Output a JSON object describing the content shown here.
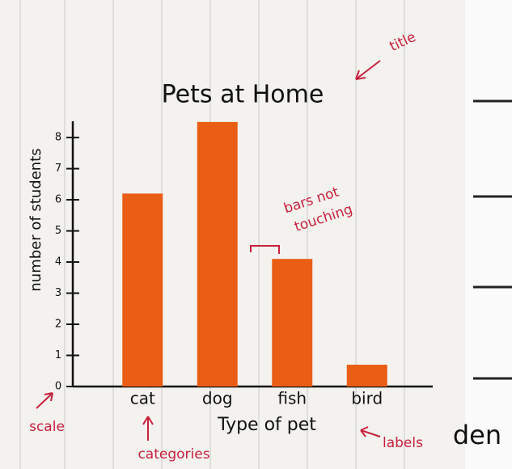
{
  "chart_data": {
    "type": "bar",
    "title": "Pets at Home",
    "x_label": "Type of pet",
    "y_label": "number of students",
    "categories": [
      "cat",
      "dog",
      "fish",
      "bird"
    ],
    "values": [
      6.2,
      8.5,
      4.1,
      0.7
    ],
    "color": "#ea5d14",
    "ylim": [
      0,
      8.6
    ],
    "yticks": [
      0,
      1,
      2,
      3,
      4,
      5,
      6,
      7,
      8
    ],
    "grid": false,
    "annotations": [
      "title",
      "bars not",
      "touching",
      "scale",
      "categories",
      "labels",
      "den"
    ]
  }
}
